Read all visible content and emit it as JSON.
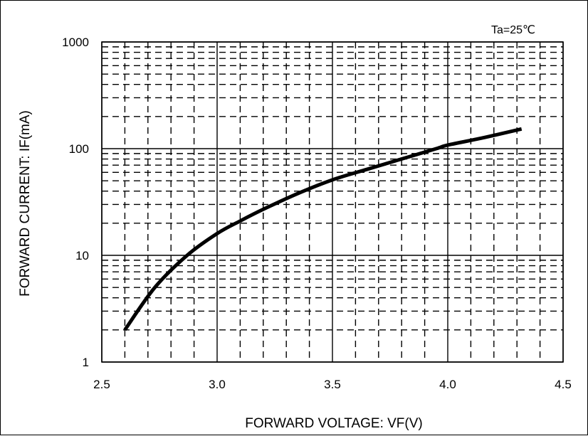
{
  "chart_data": {
    "type": "line",
    "annotation": "Ta=25℃",
    "xlabel": "FORWARD VOLTAGE: VF(V)",
    "ylabel": "FORWARD CURRENT: IF(mA)",
    "x_scale": "linear",
    "y_scale": "log",
    "xlim": [
      2.5,
      4.5
    ],
    "ylim": [
      1,
      1000
    ],
    "x_ticks": [
      2.5,
      3.0,
      3.5,
      4.0,
      4.5
    ],
    "x_tick_labels": [
      "2.5",
      "3.0",
      "3.5",
      "4.0",
      "4.5"
    ],
    "y_ticks": [
      1,
      10,
      100,
      1000
    ],
    "y_tick_labels": [
      "1",
      "10",
      "100",
      "1000"
    ],
    "grid": true,
    "series": [
      {
        "x": [
          2.6,
          2.73,
          2.87,
          3.0,
          3.1,
          3.2,
          3.35,
          3.5,
          3.65,
          3.8,
          3.95,
          4.0,
          4.15,
          4.32
        ],
        "y": [
          2,
          5,
          10,
          16,
          21,
          27,
          38,
          51,
          64,
          80,
          100,
          108,
          126,
          153
        ]
      }
    ],
    "line_color": "#000000"
  }
}
